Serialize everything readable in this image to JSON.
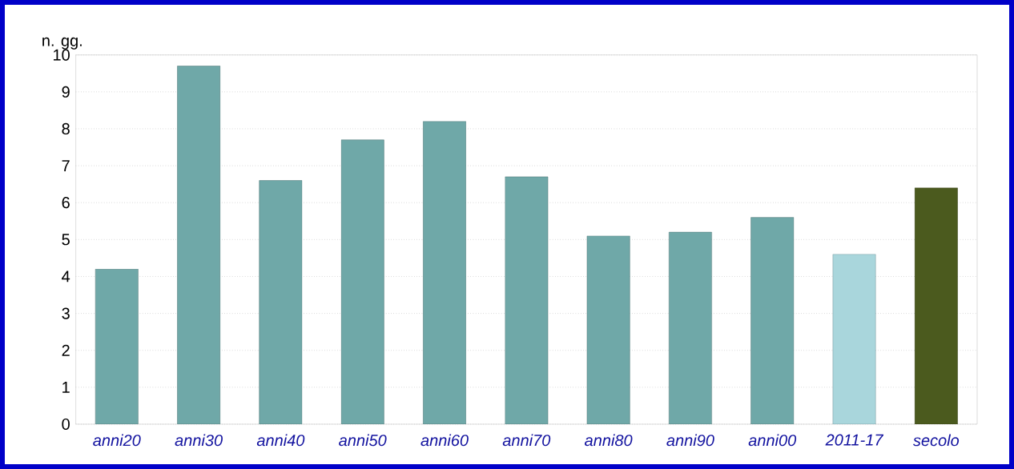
{
  "chart_data": {
    "type": "bar",
    "ylabel": "n. gg.",
    "categories": [
      "anni20",
      "anni30",
      "anni40",
      "anni50",
      "anni60",
      "anni70",
      "anni80",
      "anni90",
      "anni00",
      "2011-17",
      "secolo"
    ],
    "values": [
      4.2,
      9.7,
      6.6,
      7.7,
      8.2,
      6.7,
      5.1,
      5.2,
      5.6,
      4.6,
      6.4
    ],
    "colors": [
      "#6fa8a8",
      "#6fa8a8",
      "#6fa8a8",
      "#6fa8a8",
      "#6fa8a8",
      "#6fa8a8",
      "#6fa8a8",
      "#6fa8a8",
      "#6fa8a8",
      "#a9d6dc",
      "#4b5a1e"
    ],
    "ylim": [
      0,
      10
    ],
    "yticks": [
      0,
      1,
      2,
      3,
      4,
      5,
      6,
      7,
      8,
      9,
      10
    ],
    "grid": "y"
  }
}
